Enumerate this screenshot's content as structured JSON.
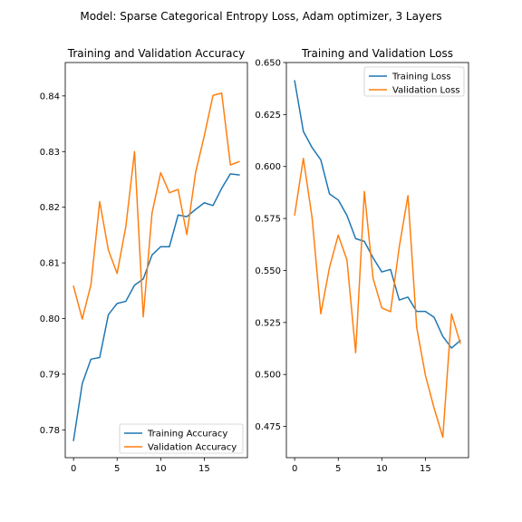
{
  "figure": {
    "suptitle": "Model: Sparse Categorical Entropy Loss, Adam optimizer, 3 Layers"
  },
  "colors": {
    "training": "#1f77b4",
    "validation": "#ff7f0e",
    "background": "#ffffff",
    "axes": "#000000",
    "legend_border": "#cccccc"
  },
  "chart_data": [
    {
      "type": "line",
      "title": "Training and Validation Accuracy",
      "xlabel": "",
      "ylabel": "",
      "xlim": [
        -0.95,
        19.95
      ],
      "ylim": [
        0.775,
        0.846
      ],
      "xticks": [
        0,
        5,
        10,
        15
      ],
      "xtick_labels": [
        "0",
        "5",
        "10",
        "15"
      ],
      "yticks": [
        0.78,
        0.79,
        0.8,
        0.81,
        0.82,
        0.83,
        0.84
      ],
      "ytick_labels": [
        "0.78",
        "0.79",
        "0.80",
        "0.81",
        "0.82",
        "0.83",
        "0.84"
      ],
      "grid": false,
      "legend_position": "lower-right",
      "x": [
        0,
        1,
        2,
        3,
        4,
        5,
        6,
        7,
        8,
        9,
        10,
        11,
        12,
        13,
        14,
        15,
        16,
        17,
        18,
        19
      ],
      "series": [
        {
          "name": "Training Accuracy",
          "color": "#1f77b4",
          "values": [
            0.7781,
            0.7883,
            0.7927,
            0.793,
            0.8007,
            0.8027,
            0.8031,
            0.806,
            0.8071,
            0.8114,
            0.8129,
            0.8129,
            0.8186,
            0.8183,
            0.8196,
            0.8208,
            0.8203,
            0.8234,
            0.826,
            0.8258
          ]
        },
        {
          "name": "Validation Accuracy",
          "color": "#ff7f0e",
          "values": [
            0.8058,
            0.7999,
            0.8061,
            0.821,
            0.8123,
            0.8081,
            0.8165,
            0.83,
            0.8003,
            0.8189,
            0.8262,
            0.8226,
            0.8232,
            0.8151,
            0.8262,
            0.8328,
            0.8401,
            0.8405,
            0.8276,
            0.8282
          ]
        }
      ]
    },
    {
      "type": "line",
      "title": "Training and Validation Loss",
      "xlabel": "",
      "ylabel": "",
      "xlim": [
        -0.95,
        19.95
      ],
      "ylim": [
        0.46,
        0.65
      ],
      "xticks": [
        0,
        5,
        10,
        15
      ],
      "xtick_labels": [
        "0",
        "5",
        "10",
        "15"
      ],
      "yticks": [
        0.475,
        0.5,
        0.525,
        0.55,
        0.575,
        0.6,
        0.625,
        0.65
      ],
      "ytick_labels": [
        "0.475",
        "0.500",
        "0.525",
        "0.550",
        "0.575",
        "0.600",
        "0.625",
        "0.650"
      ],
      "grid": false,
      "legend_position": "upper-right",
      "x": [
        0,
        1,
        2,
        3,
        4,
        5,
        6,
        7,
        8,
        9,
        10,
        11,
        12,
        13,
        14,
        15,
        16,
        17,
        18,
        19
      ],
      "series": [
        {
          "name": "Training Loss",
          "color": "#1f77b4",
          "values": [
            0.6412,
            0.6169,
            0.6091,
            0.6032,
            0.5868,
            0.5839,
            0.5765,
            0.5653,
            0.564,
            0.5561,
            0.5493,
            0.5505,
            0.5358,
            0.5372,
            0.5303,
            0.5303,
            0.5275,
            0.5183,
            0.5127,
            0.5163
          ]
        },
        {
          "name": "Validation Loss",
          "color": "#ff7f0e",
          "values": [
            0.5768,
            0.6039,
            0.5754,
            0.5292,
            0.5515,
            0.567,
            0.5551,
            0.5105,
            0.588,
            0.5462,
            0.532,
            0.5302,
            0.5613,
            0.586,
            0.5227,
            0.4997,
            0.4838,
            0.4698,
            0.5291,
            0.5151
          ]
        }
      ]
    }
  ]
}
